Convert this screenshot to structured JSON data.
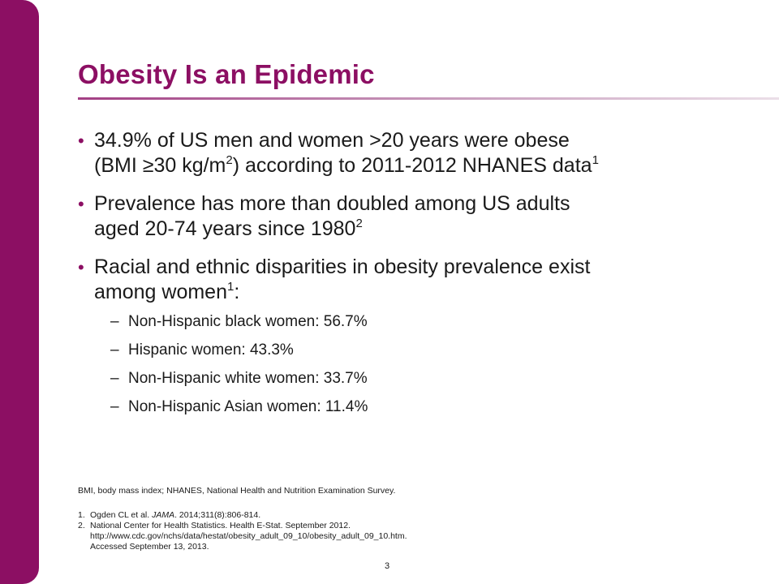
{
  "slide": {
    "title": "Obesity Is an Epidemic",
    "bullets": [
      {
        "line1": "34.9% of US men and women >20 years were obese",
        "line2_a": "(BMI ≥30 kg/m",
        "line2_sup1": "2",
        "line2_b": ") according to 2011-2012 NHANES data",
        "line2_sup2": "1"
      },
      {
        "line1": "Prevalence has more than doubled among US adults",
        "line2": "aged 20-74 years since 1980",
        "line2_sup": "2"
      },
      {
        "line1": "Racial and ethnic disparities in obesity prevalence exist",
        "line2": "among women",
        "line2_sup": "1",
        "line2_tail": ":"
      }
    ],
    "subbullets": [
      "Non-Hispanic black women: 56.7%",
      "Hispanic women: 43.3%",
      "Non-Hispanic white women: 33.7%",
      "Non-Hispanic Asian women: 11.4%"
    ],
    "abbreviations": "BMI, body mass index; NHANES, National Health and Nutrition Examination Survey.",
    "references": [
      {
        "num": "1.",
        "pre": "Ogden CL et al. ",
        "journal": "JAMA",
        "post": ". 2014;311(8):806-814."
      },
      {
        "num": "2.",
        "line1": "National Center for Health Statistics. Health E-Stat. September 2012.",
        "line2": "http://www.cdc.gov/nchs/data/hestat/obesity_adult_09_10/obesity_adult_09_10.htm.",
        "line3": "Accessed September 13, 2013."
      }
    ],
    "page_number": "3",
    "colors": {
      "accent": "#8c0f63",
      "text": "#1a1a1a"
    }
  }
}
